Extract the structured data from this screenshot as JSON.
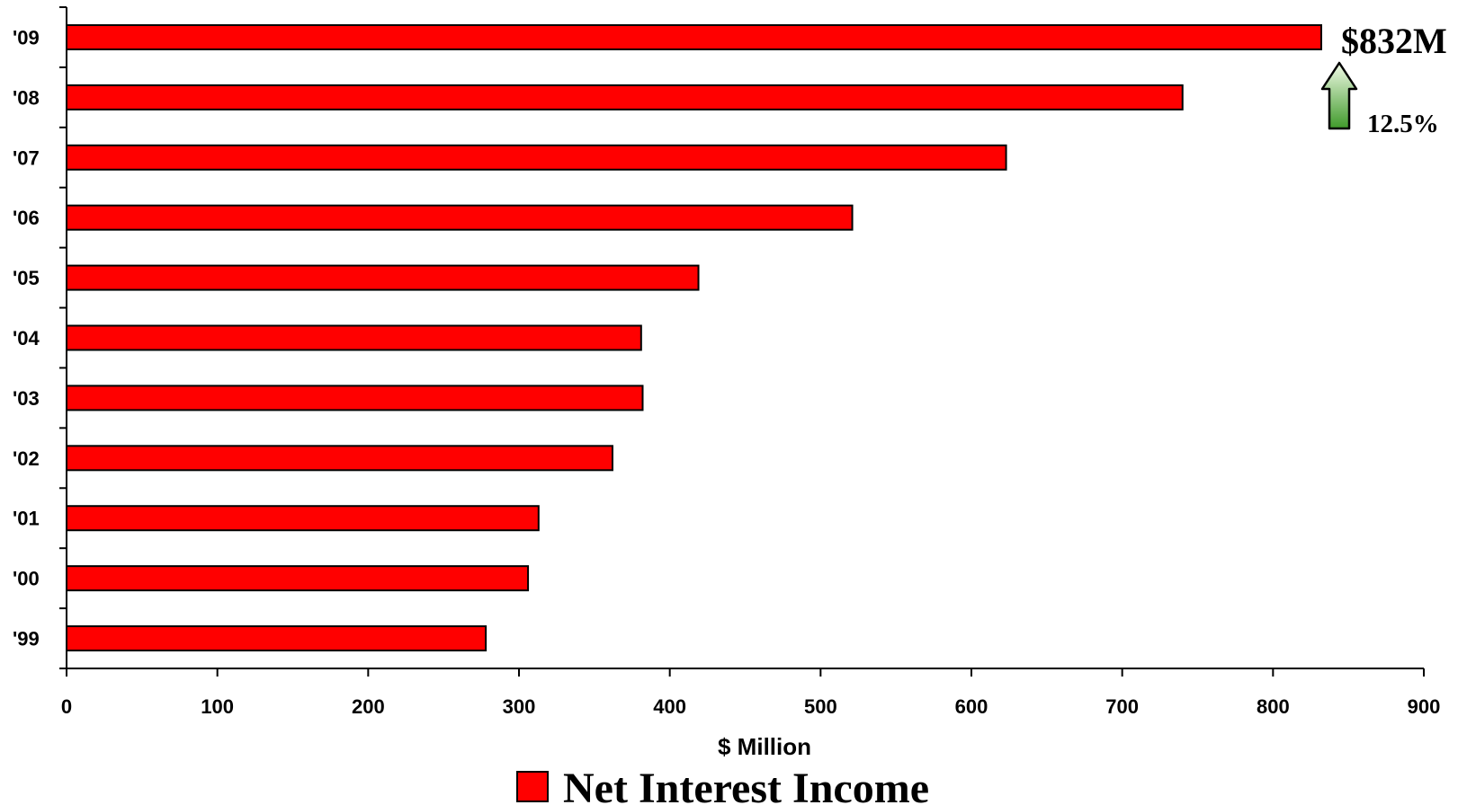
{
  "chart_data": {
    "type": "bar",
    "orientation": "horizontal",
    "categories": [
      "'99",
      "'00",
      "'01",
      "'02",
      "'03",
      "'04",
      "'05",
      "'06",
      "'07",
      "'08",
      "'09"
    ],
    "series": [
      {
        "name": "Net Interest Income",
        "values": [
          278,
          306,
          313,
          362,
          382,
          381,
          419,
          521,
          623,
          740,
          832
        ],
        "color": "#ff0000"
      }
    ],
    "xlabel": "$ Million",
    "xlim": [
      0,
      900
    ],
    "xticks": [
      0,
      100,
      200,
      300,
      400,
      500,
      600,
      700,
      800,
      900
    ],
    "grid": false,
    "legend_position": "bottom-center",
    "annotations": {
      "value_label": "$832M",
      "change_label": "12.5%",
      "arrow_icon": "up-arrow-icon",
      "arrow_color": "#5fbf3a"
    }
  }
}
